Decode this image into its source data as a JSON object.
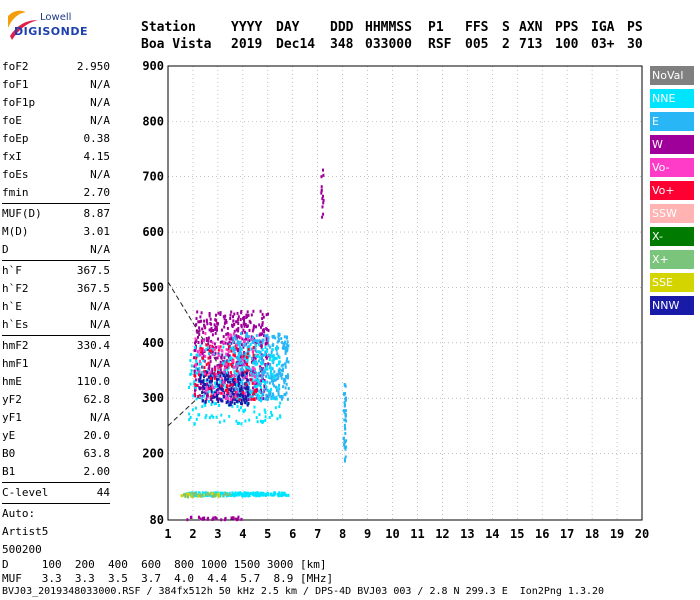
{
  "logo": {
    "line1": "Lowell",
    "line2": "DIGISONDE"
  },
  "header": {
    "row1": [
      "Station",
      "YYYY",
      "DAY",
      "DDD",
      "HHMMSS",
      "P1",
      "FFS",
      "S",
      "AXN",
      "PPS",
      "IGA",
      "PS"
    ],
    "row2": [
      "Boa Vista",
      "2019",
      "Dec14",
      "348",
      "033000",
      "RSF",
      "005",
      "2",
      "713",
      "100",
      "03+",
      "30"
    ]
  },
  "params": {
    "group1": [
      {
        "k": "foF2",
        "v": "2.950"
      },
      {
        "k": "foF1",
        "v": "N/A"
      },
      {
        "k": "foF1p",
        "v": "N/A"
      },
      {
        "k": "foE",
        "v": "N/A"
      },
      {
        "k": "foEp",
        "v": "0.38"
      },
      {
        "k": "fxI",
        "v": "4.15"
      },
      {
        "k": "foEs",
        "v": "N/A"
      },
      {
        "k": "fmin",
        "v": "2.70"
      }
    ],
    "group2": [
      {
        "k": "MUF(D)",
        "v": "8.87"
      },
      {
        "k": "M(D)",
        "v": "3.01"
      },
      {
        "k": "D",
        "v": "N/A"
      }
    ],
    "group3": [
      {
        "k": "h`F",
        "v": "367.5"
      },
      {
        "k": "h`F2",
        "v": "367.5"
      },
      {
        "k": "h`E",
        "v": "N/A"
      },
      {
        "k": "h`Es",
        "v": "N/A"
      }
    ],
    "group4": [
      {
        "k": "hmF2",
        "v": "330.4"
      },
      {
        "k": "hmF1",
        "v": "N/A"
      },
      {
        "k": "hmE",
        "v": "110.0"
      },
      {
        "k": "yF2",
        "v": "62.8"
      },
      {
        "k": "yF1",
        "v": "N/A"
      },
      {
        "k": "yE",
        "v": "20.0"
      },
      {
        "k": "B0",
        "v": "63.8"
      },
      {
        "k": "B1",
        "v": "2.00"
      }
    ],
    "clevel": {
      "k": "C-level",
      "v": "44"
    },
    "auto": [
      "Auto:",
      "Artist5",
      "500200"
    ]
  },
  "legend": [
    {
      "label": "NoVal",
      "color": "#808080"
    },
    {
      "label": "NNE",
      "color": "#00e5ff"
    },
    {
      "label": "E",
      "color": "#29b6f6"
    },
    {
      "label": "W",
      "color": "#a0009a"
    },
    {
      "label": "Vo-",
      "color": "#ff3cc8"
    },
    {
      "label": "Vo+",
      "color": "#ff0033"
    },
    {
      "label": "SSW",
      "color": "#ffb3b3"
    },
    {
      "label": "X-",
      "color": "#007a00"
    },
    {
      "label": "X+",
      "color": "#7bc47b"
    },
    {
      "label": "SSE",
      "color": "#d4d400"
    },
    {
      "label": "NNW",
      "color": "#1a1aa8"
    }
  ],
  "bottom": {
    "dline": "D     100  200  400  600  800 1000 1500 3000 [km]",
    "mufline": "MUF   3.3  3.3  3.5  3.7  4.0  4.4  5.7  8.9 [MHz]",
    "footer": "BVJ03_2019348033000.RSF / 384fx512h 50 kHz 2.5 km / DPS-4D BVJ03 003 / 2.8 N 299.3 E  Ion2Png 1.3.20"
  },
  "chart_data": {
    "type": "scatter",
    "xlim": [
      1,
      20
    ],
    "ylim": [
      80,
      900
    ],
    "xticks": [
      1,
      2,
      3,
      4,
      5,
      6,
      7,
      8,
      9,
      10,
      11,
      12,
      13,
      14,
      15,
      16,
      17,
      18,
      19,
      20
    ],
    "yticks": [
      80,
      200,
      300,
      400,
      500,
      600,
      700,
      800,
      900
    ],
    "grid": true,
    "clusters": [
      {
        "name": "F-trace-W",
        "color": "#a0009a",
        "x": [
          2.0,
          5.0
        ],
        "y": [
          300,
          460
        ],
        "n": 520
      },
      {
        "name": "F-trace-E",
        "color": "#29b6f6",
        "x": [
          3.5,
          5.8
        ],
        "y": [
          300,
          420
        ],
        "n": 380
      },
      {
        "name": "F-trace-NNE",
        "color": "#00e5ff",
        "x": [
          1.8,
          5.5
        ],
        "y": [
          255,
          400
        ],
        "n": 260
      },
      {
        "name": "F-trace-NNW",
        "color": "#1a1aa8",
        "x": [
          2.2,
          4.2
        ],
        "y": [
          290,
          350
        ],
        "n": 180
      },
      {
        "name": "F-trace-Vo+",
        "color": "#ff0033",
        "x": [
          2.0,
          4.5
        ],
        "y": [
          300,
          400
        ],
        "n": 90
      },
      {
        "name": "F-trace-Vo-",
        "color": "#ff3cc8",
        "x": [
          2.0,
          4.5
        ],
        "y": [
          300,
          420
        ],
        "n": 80
      },
      {
        "name": "E-trace-NNE",
        "color": "#00e5ff",
        "x": [
          1.7,
          5.8
        ],
        "y": [
          126,
          132
        ],
        "n": 200
      },
      {
        "name": "E-trace-SSE",
        "color": "#d4d400",
        "x": [
          1.5,
          3.0
        ],
        "y": [
          125,
          131
        ],
        "n": 25
      },
      {
        "name": "E-trace-X+",
        "color": "#7bc47b",
        "x": [
          1.5,
          3.5
        ],
        "y": [
          124,
          131
        ],
        "n": 25
      },
      {
        "name": "E-trace-W",
        "color": "#a0009a",
        "x": [
          1.6,
          4.0
        ],
        "y": [
          83,
          88
        ],
        "n": 30
      },
      {
        "name": "Line-8MHz",
        "color": "#29b6f6",
        "x": [
          8.0,
          8.1
        ],
        "y": [
          185,
          330
        ],
        "n": 40
      },
      {
        "name": "Line-7MHz",
        "color": "#a0009a",
        "x": [
          7.1,
          7.2
        ],
        "y": [
          615,
          720
        ],
        "n": 14
      }
    ],
    "profile_lines": [
      {
        "name": "upper",
        "x": [
          1.0,
          3.1
        ],
        "y": [
          510,
          355
        ]
      },
      {
        "name": "lower",
        "x": [
          1.0,
          2.9
        ],
        "y": [
          250,
          330
        ]
      }
    ]
  }
}
